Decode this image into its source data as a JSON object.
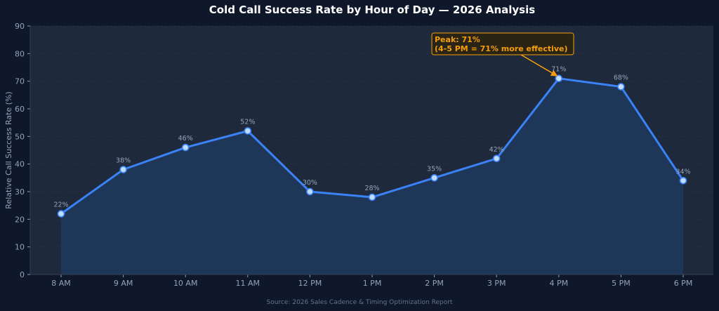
{
  "chart_data": {
    "type": "line",
    "title": "Cold Call Success Rate by Hour of Day — 2026 Analysis",
    "ylabel": "Relative Call Success Rate (%)",
    "xlabel": "",
    "categories": [
      "8 AM",
      "9 AM",
      "10 AM",
      "11 AM",
      "12 PM",
      "1 PM",
      "2 PM",
      "3 PM",
      "4 PM",
      "5 PM",
      "6 PM"
    ],
    "series": [
      {
        "values": [
          22,
          38,
          46,
          52,
          30,
          28,
          35,
          42,
          71,
          68,
          34
        ]
      }
    ],
    "data_labels": [
      "22%",
      "38%",
      "46%",
      "52%",
      "30%",
      "28%",
      "35%",
      "42%",
      "71%",
      "68%",
      "34%"
    ],
    "ylim": [
      0,
      90
    ],
    "yticks": [
      0,
      10,
      20,
      30,
      40,
      50,
      60,
      70,
      80,
      90
    ],
    "grid": true,
    "area_fill": true,
    "annotation": {
      "lines": [
        "Peak: 71%",
        "(4-5 PM = 71% more effective)"
      ],
      "target_index": 8
    },
    "source": "Source: 2026 Sales Cadence & Timing Optimization Report",
    "colors": {
      "background": "#0f172a",
      "plot_background": "#1e293b",
      "line": "#3b82f6",
      "area": "#1e3a5f",
      "marker_fill": "#bfdbfe",
      "annotation": "#f59e0b",
      "text_muted": "#94a3b8",
      "grid": "#2a3548"
    }
  }
}
